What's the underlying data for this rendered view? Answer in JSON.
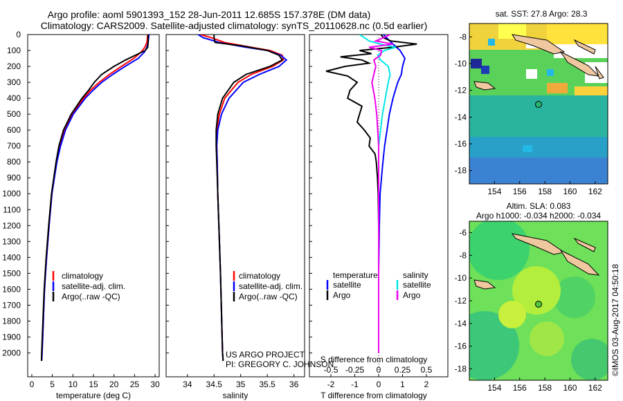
{
  "title_line1": "Argo profile: aoml 5901393_152 28-Jun-2011 12.685S 157.378E (DM data)",
  "title_line2": "Climatology: CARS2009. Satellite-adjusted climatology: synTS_20110628.nc (0.5d earlier)",
  "colors": {
    "clim": "#ff0000",
    "sat": "#0000ff",
    "argo": "#000000",
    "sal_sat": "#00e5e5",
    "sal_argo": "#ee00ee"
  },
  "project": {
    "line1": "US ARGO PROJECT",
    "line2": "PI: GREGORY C. JOHNSON"
  },
  "watermark": "©IMOS 03-Aug-2017 04:50:18",
  "legend_profile": {
    "clim": "climatology",
    "sat": "satellite-adj. clim.",
    "argo": "Argo(..raw -QC)"
  },
  "legend_diff": {
    "t_head": "temperature",
    "s_head": "salinity",
    "sat": "satellite",
    "argo": "Argo"
  },
  "sst_title": "sat. SST: 27.8 Argo: 28.3",
  "sla_title1": "Altim. SLA: 0.083",
  "sla_title2": "Argo h1000: -0.034 h2000: -0.034",
  "chart_data": [
    {
      "type": "line",
      "id": "temperature",
      "xlabel": "temperature (deg C)",
      "ylabel": "",
      "xlim": [
        -1,
        31
      ],
      "ylim": [
        2150,
        0
      ],
      "xticks": [
        0,
        5,
        10,
        15,
        20,
        25,
        30
      ],
      "yticks": [
        0,
        100,
        200,
        300,
        400,
        500,
        600,
        700,
        800,
        900,
        1000,
        1100,
        1200,
        1300,
        1400,
        1500,
        1600,
        1700,
        1800,
        1900,
        2000
      ],
      "series": [
        {
          "name": "climatology",
          "color": "clim",
          "depth": [
            0,
            50,
            80,
            110,
            150,
            200,
            250,
            300,
            350,
            400,
            500,
            600,
            700,
            800,
            1000,
            1200,
            1400,
            1600,
            1800,
            2000,
            2050
          ],
          "values": [
            28.2,
            28.0,
            27.5,
            26.6,
            24.8,
            21.8,
            18.9,
            16.4,
            14.3,
            12.6,
            9.9,
            8.0,
            6.9,
            6.0,
            4.9,
            4.2,
            3.6,
            3.1,
            2.8,
            2.5,
            2.4
          ]
        },
        {
          "name": "satellite-adj. clim.",
          "color": "sat",
          "depth": [
            0,
            50,
            80,
            110,
            150,
            200,
            250,
            300,
            350,
            400,
            500,
            600,
            700,
            800,
            1000,
            1200,
            1400,
            1600,
            1800,
            2000,
            2050
          ],
          "values": [
            28.5,
            28.3,
            28.0,
            27.4,
            25.9,
            22.7,
            19.7,
            17.0,
            14.9,
            13.0,
            10.1,
            8.2,
            7.0,
            6.1,
            4.9,
            4.2,
            3.6,
            3.1,
            2.8,
            2.5,
            2.4
          ]
        },
        {
          "name": "Argo(..raw -QC)",
          "color": "argo",
          "depth": [
            0,
            50,
            80,
            100,
            130,
            160,
            200,
            250,
            300,
            350,
            400,
            500,
            600,
            700,
            800,
            1000,
            1200,
            1400,
            1600,
            1800,
            2000,
            2050
          ],
          "values": [
            28.3,
            28.3,
            28.2,
            27.6,
            25.2,
            22.8,
            20.0,
            17.0,
            15.2,
            13.8,
            12.2,
            9.6,
            7.7,
            6.6,
            5.9,
            4.8,
            4.1,
            3.5,
            3.0,
            2.7,
            2.4,
            2.35
          ]
        }
      ]
    },
    {
      "type": "line",
      "id": "salinity",
      "xlabel": "salinity",
      "ylabel": "",
      "xlim": [
        33.6,
        36.2
      ],
      "ylim": [
        2150,
        0
      ],
      "xticks": [
        34,
        34.5,
        35,
        35.5,
        36
      ],
      "series": [
        {
          "name": "climatology",
          "color": "clim",
          "depth": [
            0,
            20,
            50,
            80,
            100,
            130,
            160,
            200,
            250,
            300,
            400,
            500,
            600,
            700,
            800,
            1000,
            1200,
            1500,
            2000,
            2050
          ],
          "values": [
            34.25,
            34.45,
            34.7,
            35.2,
            35.55,
            35.78,
            35.8,
            35.6,
            35.2,
            34.95,
            34.7,
            34.6,
            34.55,
            34.55,
            34.56,
            34.57,
            34.59,
            34.62,
            34.66,
            34.67
          ]
        },
        {
          "name": "satellite-adj. clim.",
          "color": "sat",
          "depth": [
            0,
            20,
            50,
            80,
            100,
            130,
            160,
            200,
            250,
            300,
            400,
            500,
            600,
            700,
            800,
            1000,
            1200,
            1500,
            2000,
            2050
          ],
          "values": [
            34.2,
            34.3,
            34.6,
            35.1,
            35.5,
            35.75,
            35.86,
            35.72,
            35.35,
            35.05,
            34.78,
            34.64,
            34.57,
            34.55,
            34.56,
            34.57,
            34.59,
            34.62,
            34.66,
            34.67
          ]
        },
        {
          "name": "Argo(..raw -QC)",
          "color": "argo",
          "depth": [
            0,
            20,
            50,
            70,
            100,
            130,
            160,
            200,
            250,
            300,
            400,
            500,
            600,
            700,
            800,
            1000,
            1200,
            1500,
            2000,
            2050
          ],
          "values": [
            34.5,
            34.5,
            34.52,
            35.0,
            35.5,
            35.72,
            35.78,
            35.55,
            35.1,
            34.87,
            34.66,
            34.57,
            34.54,
            34.54,
            34.55,
            34.57,
            34.59,
            34.62,
            34.66,
            34.67
          ]
        }
      ]
    },
    {
      "type": "line",
      "id": "differences",
      "xlabel": "T difference from climatology",
      "xlabel_top": "S difference from climatology",
      "xlim": [
        -2.9,
        2.9
      ],
      "ylim": [
        2150,
        0
      ],
      "xticks_t": [
        -2,
        -1,
        0,
        1,
        2
      ],
      "xticks_s": [
        -0.5,
        -0.25,
        0,
        0.25,
        0.5
      ],
      "series": [
        {
          "name": "T satellite",
          "color": "sat",
          "depth": [
            0,
            30,
            60,
            100,
            150,
            200,
            250,
            300,
            400,
            500,
            600,
            700,
            800,
            900,
            1000,
            1200,
            1500,
            2000
          ],
          "values": [
            0.2,
            0.4,
            0.6,
            0.9,
            1.1,
            1.0,
            0.95,
            0.8,
            0.6,
            0.45,
            0.35,
            0.25,
            0.18,
            0.12,
            0.06,
            0.03,
            0.0,
            0.0
          ]
        },
        {
          "name": "T Argo",
          "color": "argo",
          "depth": [
            0,
            20,
            40,
            60,
            80,
            100,
            120,
            140,
            160,
            180,
            200,
            230,
            260,
            300,
            350,
            400,
            450,
            500,
            550,
            600,
            650,
            700,
            750,
            800,
            900,
            1000,
            1200,
            1500,
            2000
          ],
          "values": [
            0.1,
            0.2,
            0.5,
            1.6,
            0.6,
            -0.8,
            -0.3,
            -1.6,
            -0.7,
            -0.4,
            -1.4,
            -2.2,
            -1.3,
            -0.9,
            -1.2,
            -1.3,
            -0.7,
            -0.8,
            -0.9,
            -0.6,
            -0.35,
            -0.4,
            -0.15,
            -0.1,
            -0.05,
            -0.02,
            0.0,
            0.0,
            0.0
          ]
        },
        {
          "name": "S satellite",
          "color": "sal_sat",
          "depth": [
            0,
            20,
            40,
            60,
            80,
            100,
            130,
            160,
            200,
            250,
            300,
            400,
            500,
            600,
            700,
            800,
            900,
            1000,
            1200,
            1500,
            2000
          ],
          "values": [
            -0.2,
            -0.15,
            -0.1,
            0.02,
            0.18,
            0.06,
            -0.01,
            0.02,
            0.1,
            0.12,
            0.1,
            0.07,
            0.04,
            0.02,
            0.0,
            0.0,
            0.0,
            0.0,
            0.0,
            0.0,
            0.0
          ]
        },
        {
          "name": "S Argo",
          "color": "sal_argo",
          "depth": [
            0,
            20,
            40,
            60,
            80,
            100,
            130,
            160,
            200,
            250,
            300,
            400,
            500,
            600,
            700,
            800,
            900,
            1000,
            1200,
            1500,
            2000
          ],
          "values": [
            0.12,
            0.05,
            -0.03,
            0.15,
            -0.1,
            0.03,
            0.02,
            -0.05,
            -0.03,
            -0.05,
            -0.07,
            -0.04,
            -0.02,
            -0.01,
            0.0,
            0.0,
            0.0,
            0.0,
            0.0,
            0.0,
            0.0
          ]
        }
      ]
    },
    {
      "type": "heatmap",
      "id": "sst_map",
      "title": "sat. SST: 27.8 Argo: 28.3",
      "xlim": [
        152,
        163
      ],
      "ylim": [
        -19,
        -7
      ],
      "xticks": [
        154,
        156,
        158,
        160,
        162
      ],
      "yticks": [
        -8,
        -10,
        -12,
        -14,
        -16,
        -18
      ],
      "float_position": {
        "lon": 157.378,
        "lat": -12.685
      }
    },
    {
      "type": "heatmap",
      "id": "sla_map",
      "title": "Altim. SLA: 0.083",
      "xlim": [
        152,
        163
      ],
      "ylim": [
        -19,
        -5
      ],
      "xticks": [
        154,
        156,
        158,
        160,
        162
      ],
      "yticks": [
        -6,
        -8,
        -10,
        -12,
        -14,
        -16,
        -18
      ],
      "float_position": {
        "lon": 157.378,
        "lat": -12.685
      }
    }
  ]
}
